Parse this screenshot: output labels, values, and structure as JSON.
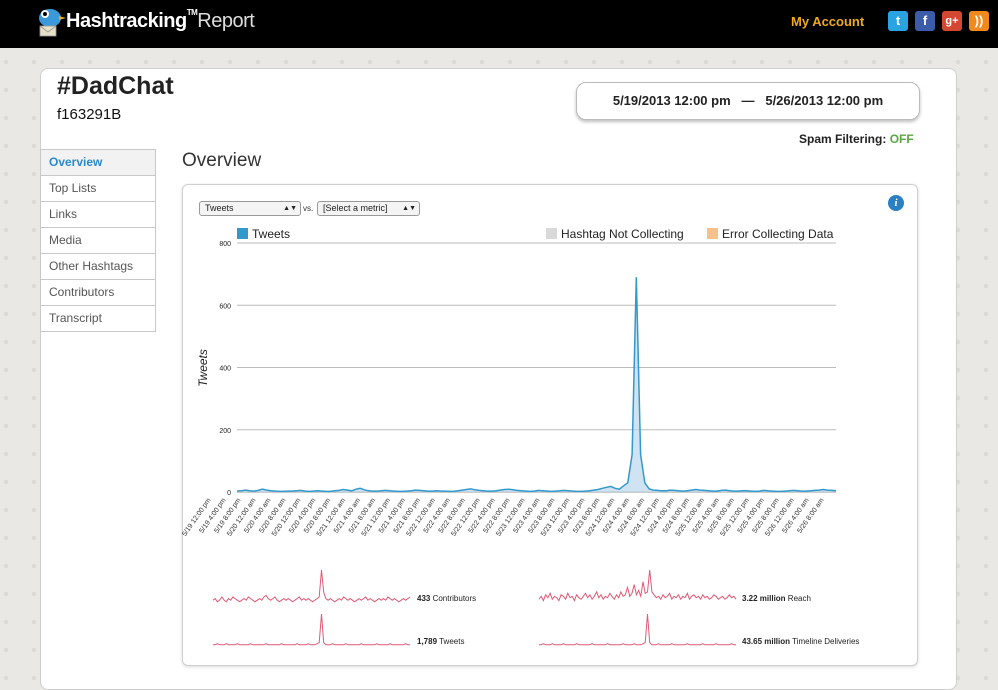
{
  "header": {
    "brand": "Hashtracking",
    "brand_tm": "TM",
    "brand_suffix": "Report",
    "my_account": "My Account",
    "social": [
      {
        "name": "twitter",
        "glyph": "t"
      },
      {
        "name": "facebook",
        "glyph": "f"
      },
      {
        "name": "google-plus",
        "glyph": "g+"
      },
      {
        "name": "rss",
        "glyph": "))"
      }
    ]
  },
  "report": {
    "title": "#DadChat",
    "id": "f163291B",
    "date_start": "5/19/2013 12:00 pm",
    "date_sep": "—",
    "date_end": "5/26/2013 12:00 pm",
    "spam_label": "Spam Filtering:",
    "spam_value": "OFF"
  },
  "nav": {
    "items": [
      "Overview",
      "Top Lists",
      "Links",
      "Media",
      "Other Hashtags",
      "Contributors",
      "Transcript"
    ],
    "active": "Overview"
  },
  "main": {
    "section_title": "Overview",
    "metric_select": "Tweets",
    "vs_label": "vs.",
    "compare_select": "[Select a metric]"
  },
  "chart_data": {
    "type": "area",
    "ylabel": "Tweets",
    "ylim": [
      0,
      800
    ],
    "yticks": [
      0,
      200,
      400,
      600,
      800
    ],
    "grid": true,
    "legend": [
      {
        "label": "Tweets",
        "color": "#3399cc"
      },
      {
        "label": "Hashtag Not Collecting",
        "color": "#d9d9d9"
      },
      {
        "label": "Error Collecting Data",
        "color": "#f7c18d"
      }
    ],
    "x_labels": [
      "5/19 12:00 pm",
      "5/19 4:00 pm",
      "5/19 8:00 pm",
      "5/20 12:00 am",
      "5/20 4:00 am",
      "5/20 8:00 am",
      "5/20 12:00 pm",
      "5/20 4:00 pm",
      "5/20 8:00 pm",
      "5/21 12:00 am",
      "5/21 4:00 am",
      "5/21 8:00 am",
      "5/21 12:00 pm",
      "5/21 4:00 pm",
      "5/21 8:00 pm",
      "5/22 12:00 am",
      "5/22 4:00 am",
      "5/22 8:00 am",
      "5/22 12:00 pm",
      "5/22 4:00 pm",
      "5/22 8:00 pm",
      "5/23 12:00 am",
      "5/23 4:00 am",
      "5/23 8:00 am",
      "5/23 12:00 pm",
      "5/23 4:00 pm",
      "5/23 8:00 pm",
      "5/24 12:00 am",
      "5/24 4:00 am",
      "5/24 8:00 am",
      "5/24 12:00 pm",
      "5/24 4:00 pm",
      "5/24 8:00 pm",
      "5/25 12:00 am",
      "5/25 4:00 am",
      "5/25 8:00 am",
      "5/25 12:00 pm",
      "5/25 4:00 pm",
      "5/25 8:00 pm",
      "5/26 12:00 am",
      "5/26 4:00 am",
      "5/26 8:00 am"
    ],
    "series": [
      {
        "name": "Tweets",
        "color": "#3399cc",
        "values": [
          3,
          4,
          6,
          4,
          3,
          5,
          9,
          6,
          4,
          3,
          2,
          2,
          3,
          3,
          4,
          5,
          3,
          2,
          3,
          4,
          3,
          2,
          2,
          4,
          5,
          8,
          6,
          4,
          9,
          12,
          7,
          4,
          3,
          3,
          4,
          5,
          4,
          3,
          2,
          2,
          3,
          4,
          6,
          5,
          4,
          3,
          3,
          4,
          3,
          3,
          2,
          2,
          4,
          6,
          8,
          10,
          7,
          5,
          4,
          3,
          3,
          4,
          6,
          8,
          9,
          7,
          5,
          4,
          3,
          2,
          3,
          5,
          4,
          3,
          2,
          3,
          4,
          5,
          4,
          3,
          2,
          2,
          3,
          4,
          6,
          8,
          12,
          15,
          18,
          12,
          9,
          20,
          30,
          120,
          690,
          120,
          30,
          10,
          6,
          5,
          4,
          4,
          6,
          5,
          4,
          3,
          4,
          6,
          8,
          6,
          5,
          4,
          3,
          3,
          5,
          6,
          4,
          3,
          3,
          4,
          4,
          3,
          2,
          3,
          5,
          4,
          3,
          2,
          2,
          3,
          4,
          5,
          4,
          3,
          3,
          4,
          5,
          6,
          8,
          6,
          5,
          4
        ]
      }
    ]
  },
  "sparklines": [
    {
      "value": "433",
      "label": "Contributors",
      "color": "#e05a75",
      "values": [
        3,
        4,
        2,
        3,
        5,
        3,
        2,
        4,
        3,
        5,
        4,
        3,
        2,
        3,
        4,
        3,
        5,
        4,
        3,
        2,
        3,
        4,
        3,
        5,
        6,
        4,
        3,
        4,
        5,
        3,
        2,
        3,
        4,
        3,
        4,
        3,
        2,
        3,
        4,
        5,
        3,
        4,
        3,
        4,
        3,
        2,
        3,
        4,
        5,
        22,
        8,
        4,
        3,
        4,
        3,
        2,
        3,
        4,
        3,
        5,
        4,
        3,
        4,
        3,
        2,
        3,
        4,
        3,
        4,
        5,
        3,
        4,
        3,
        2,
        3,
        4,
        3,
        4,
        3,
        5,
        4,
        3,
        4,
        3,
        2,
        3,
        4,
        3,
        4,
        5
      ]
    },
    {
      "value": "3.22 million",
      "label": "Reach",
      "color": "#e05a75",
      "values": [
        4,
        6,
        3,
        7,
        5,
        8,
        4,
        6,
        5,
        3,
        7,
        6,
        4,
        8,
        5,
        6,
        3,
        7,
        5,
        4,
        6,
        8,
        5,
        7,
        4,
        6,
        9,
        5,
        7,
        4,
        6,
        5,
        8,
        6,
        4,
        7,
        5,
        9,
        6,
        7,
        12,
        6,
        8,
        14,
        7,
        10,
        6,
        16,
        8,
        9,
        24,
        9,
        7,
        5,
        6,
        4,
        7,
        5,
        6,
        8,
        4,
        6,
        5,
        7,
        4,
        6,
        5,
        8,
        4,
        6,
        7,
        5,
        6,
        4,
        7,
        5,
        6,
        4,
        5,
        7,
        6,
        4,
        5,
        6,
        4,
        5,
        7,
        5,
        6,
        4
      ]
    },
    {
      "value": "1,789",
      "label": "Tweets",
      "color": "#e05a75",
      "values": [
        2,
        2,
        3,
        2,
        2,
        2,
        3,
        2,
        2,
        2,
        2,
        3,
        2,
        2,
        2,
        2,
        2,
        3,
        2,
        2,
        2,
        2,
        2,
        2,
        3,
        2,
        2,
        2,
        2,
        2,
        2,
        3,
        2,
        2,
        2,
        2,
        2,
        2,
        3,
        2,
        2,
        2,
        2,
        3,
        2,
        2,
        2,
        3,
        4,
        30,
        4,
        2,
        2,
        2,
        3,
        2,
        2,
        2,
        2,
        2,
        3,
        2,
        2,
        2,
        2,
        2,
        2,
        3,
        2,
        2,
        2,
        2,
        2,
        2,
        3,
        2,
        2,
        2,
        2,
        2,
        3,
        2,
        2,
        2,
        2,
        2,
        2,
        3,
        2,
        2
      ]
    },
    {
      "value": "43.65 million",
      "label": "Timeline Deliveries",
      "color": "#e05a75",
      "values": [
        2,
        2,
        3,
        2,
        2,
        2,
        3,
        2,
        2,
        2,
        2,
        3,
        2,
        2,
        2,
        2,
        2,
        3,
        2,
        2,
        2,
        2,
        2,
        2,
        3,
        2,
        2,
        2,
        2,
        2,
        2,
        3,
        2,
        2,
        2,
        2,
        2,
        2,
        3,
        2,
        2,
        2,
        2,
        3,
        2,
        2,
        2,
        3,
        4,
        30,
        4,
        2,
        2,
        2,
        3,
        2,
        2,
        2,
        2,
        2,
        3,
        2,
        2,
        2,
        2,
        2,
        2,
        3,
        2,
        2,
        2,
        2,
        2,
        2,
        3,
        2,
        2,
        2,
        2,
        2,
        3,
        2,
        2,
        2,
        2,
        2,
        2,
        3,
        2,
        2
      ]
    }
  ]
}
